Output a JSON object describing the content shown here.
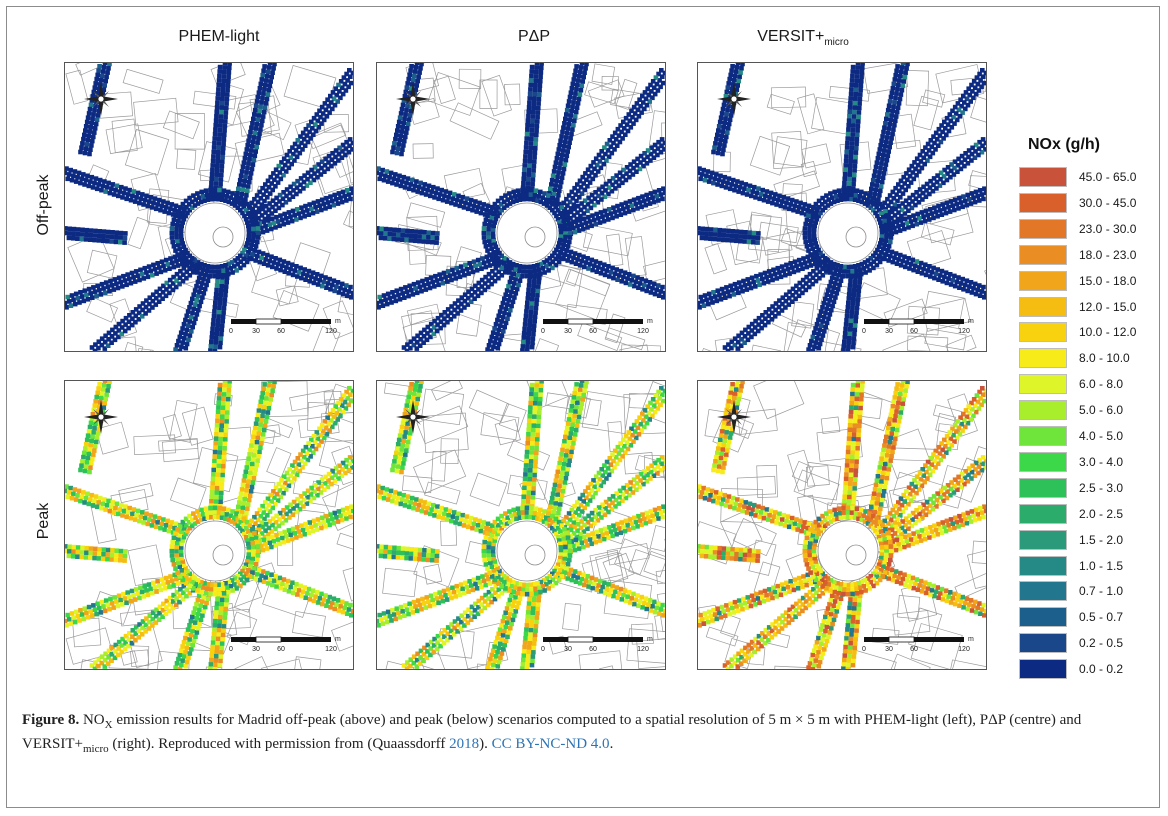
{
  "columns": [
    {
      "label": "PHEM-light",
      "sub": ""
    },
    {
      "label": "PΔP",
      "sub": ""
    },
    {
      "label": "VERSIT+",
      "sub": "micro"
    }
  ],
  "rows": [
    "Off-peak",
    "Peak"
  ],
  "scale_bar": {
    "ticks": [
      "0",
      "30",
      "60",
      "120"
    ],
    "unit": "m"
  },
  "legend": {
    "title": "NOx (g/h)",
    "items": [
      {
        "label": "45.0 - 65.0",
        "color": "#c9533a"
      },
      {
        "label": "30.0 - 45.0",
        "color": "#d9602b"
      },
      {
        "label": "23.0 - 30.0",
        "color": "#e27728"
      },
      {
        "label": "18.0 - 23.0",
        "color": "#ea8d22"
      },
      {
        "label": "15.0 - 18.0",
        "color": "#f0a51a"
      },
      {
        "label": "12.0 - 15.0",
        "color": "#f5bd12"
      },
      {
        "label": "10.0 - 12.0",
        "color": "#f8d20e"
      },
      {
        "label": "8.0 - 10.0",
        "color": "#f7ec1a"
      },
      {
        "label": "6.0 - 8.0",
        "color": "#def52a"
      },
      {
        "label": "5.0 - 6.0",
        "color": "#a9ee2c"
      },
      {
        "label": "4.0 - 5.0",
        "color": "#6fe43a"
      },
      {
        "label": "3.0 - 4.0",
        "color": "#3dd84a"
      },
      {
        "label": "2.5 - 3.0",
        "color": "#2ec15a"
      },
      {
        "label": "2.0 - 2.5",
        "color": "#2cac6a"
      },
      {
        "label": "1.5 - 2.0",
        "color": "#2a9a7a"
      },
      {
        "label": "1.0 - 1.5",
        "color": "#258a86"
      },
      {
        "label": "0.7 - 1.0",
        "color": "#22768d"
      },
      {
        "label": "0.5 - 0.7",
        "color": "#1c5f8c"
      },
      {
        "label": "0.2 - 0.5",
        "color": "#19478a"
      },
      {
        "label": "0.0 - 0.2",
        "color": "#0c2a82"
      }
    ]
  },
  "caption": {
    "fig_label": "Figure 8.",
    "p1": " NO",
    "p1_sub": "X",
    "p2": " emission results for Madrid off-peak (above) and peak (below) scenarios computed to a spatial resolution of 5 m × 5 m with PHEM-light (left), PΔP (centre) and VERSIT+",
    "p2_sub": "micro",
    "p3": " (right). Reproduced with permission from (Quaassdorff ",
    "year_link": "2018",
    "p4": "). ",
    "license_link": "CC BY-NC-ND 4.0",
    "p5": "."
  }
}
